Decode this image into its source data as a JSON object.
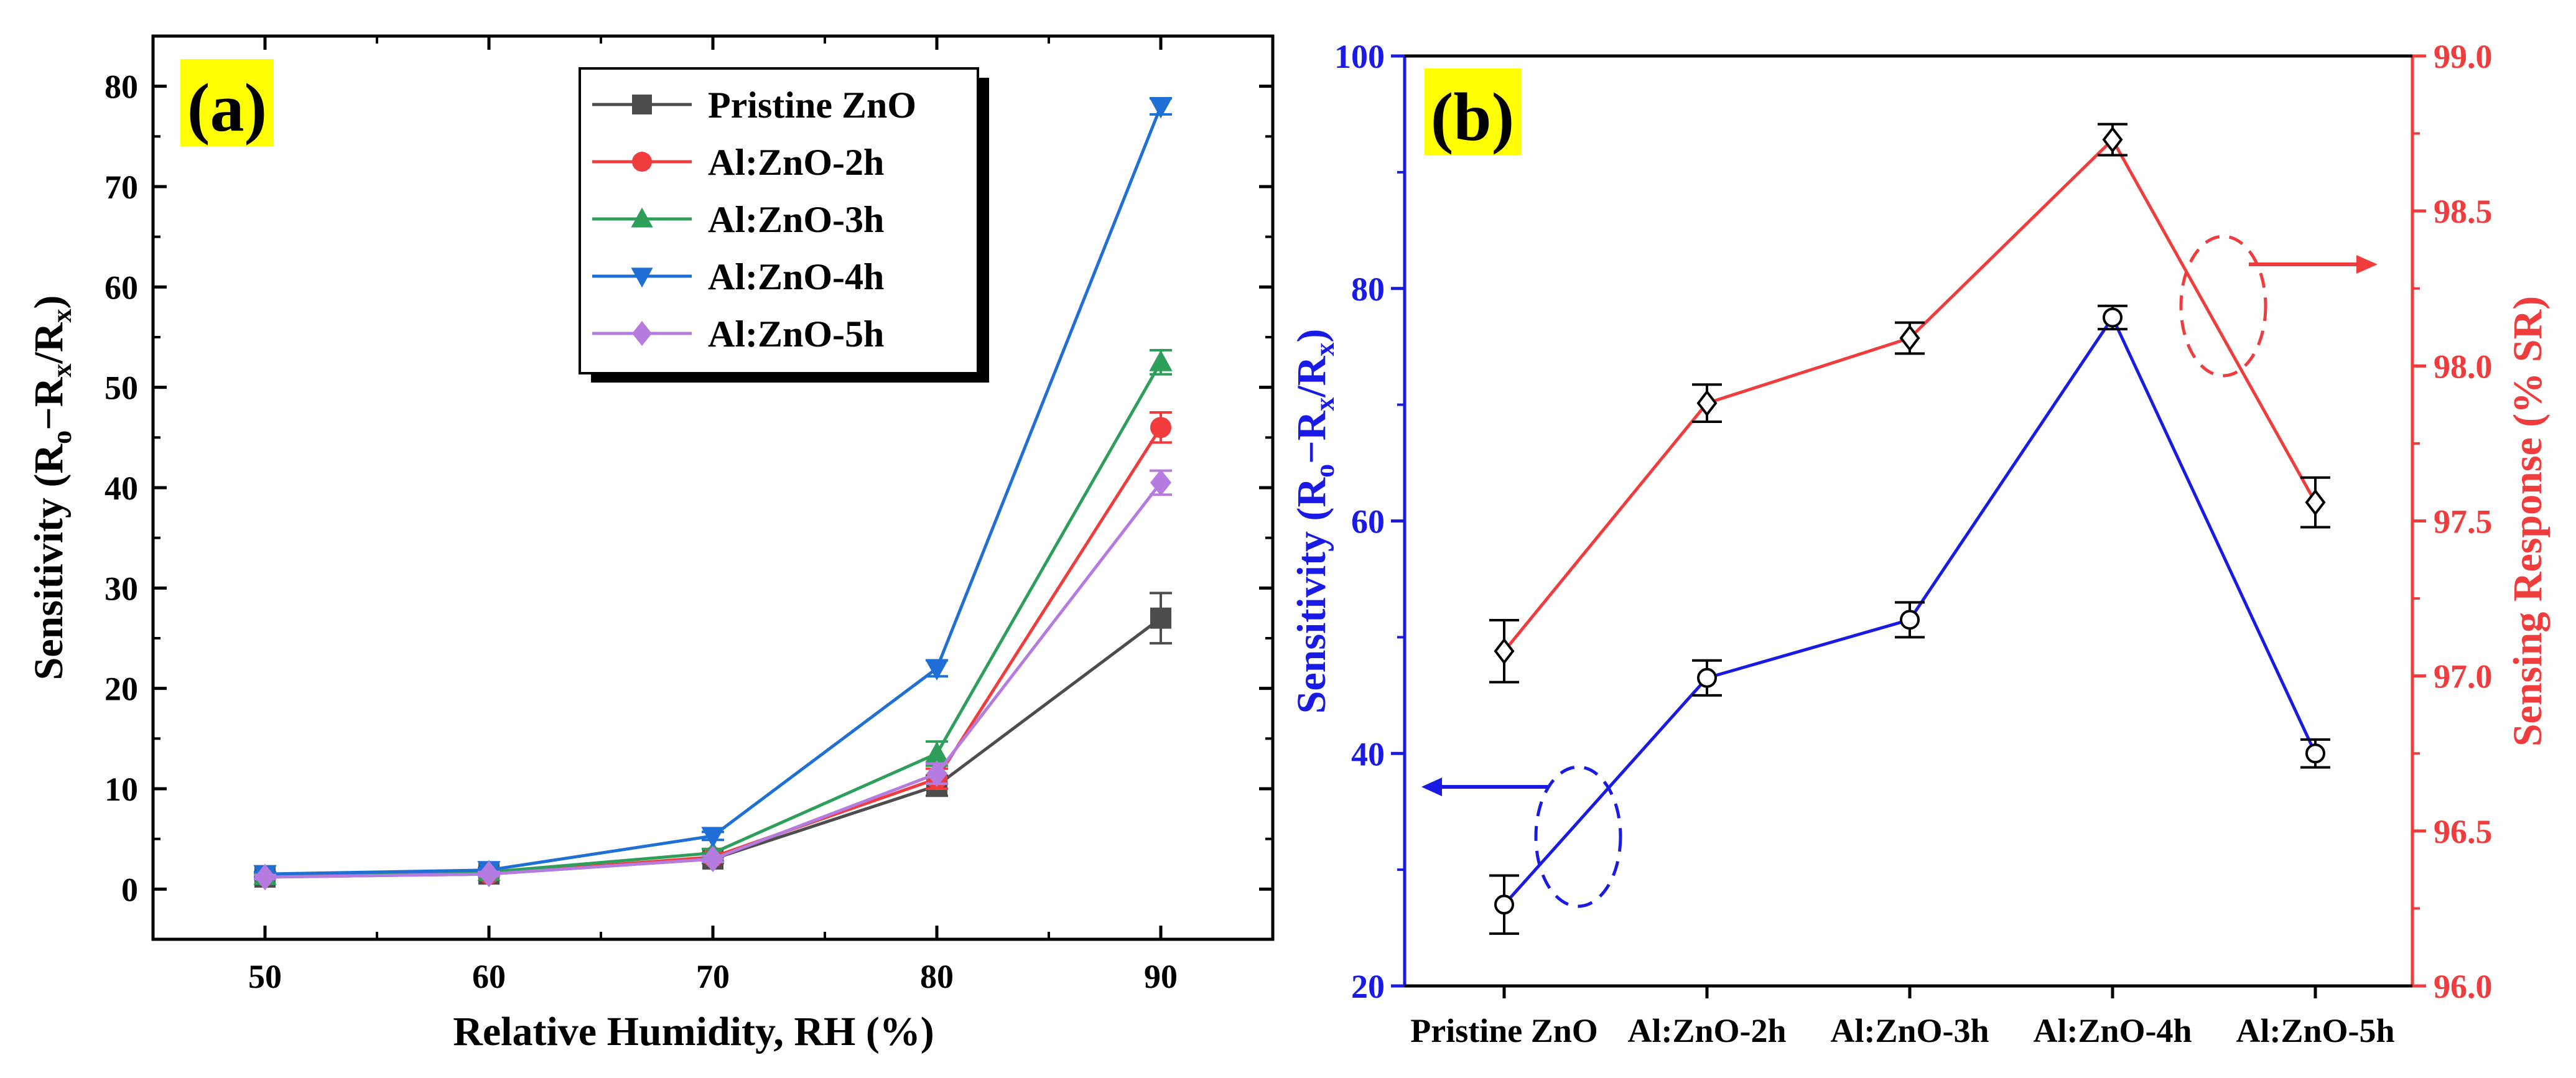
{
  "chart_data": [
    {
      "panel": "(a)",
      "type": "line",
      "xlabel": "Relative Humidity, RH (%)",
      "ylabel": "Sensitivity (Ro−Rx/Rx)",
      "ylabel_parts": {
        "pre": "Sensitivity (R",
        "sub1": "o",
        "mid": "−R",
        "sub2": "x",
        "mid2": "/R",
        "sub3": "x",
        "post": ")"
      },
      "x": [
        50,
        60,
        70,
        80,
        90
      ],
      "xlim": [
        45,
        95
      ],
      "ylim": [
        -5,
        85
      ],
      "xticks": [
        50,
        60,
        70,
        80,
        90
      ],
      "yticks": [
        0,
        10,
        20,
        30,
        40,
        50,
        60,
        70,
        80
      ],
      "grid": false,
      "legend_position": "top-center",
      "series": [
        {
          "name": "Pristine ZnO",
          "color": "#4d4d4d",
          "marker": "square",
          "values": [
            1.2,
            1.5,
            3.0,
            10.3,
            27.0
          ],
          "errors": [
            0.2,
            0.2,
            0.4,
            1.0,
            2.5
          ]
        },
        {
          "name": "Al:ZnO-2h",
          "color": "#f03c3c",
          "marker": "circle",
          "values": [
            1.3,
            1.5,
            3.2,
            11.0,
            46.0
          ],
          "errors": [
            0.2,
            0.2,
            0.4,
            1.0,
            1.5
          ]
        },
        {
          "name": "Al:ZnO-3h",
          "color": "#2e9e5b",
          "marker": "triangle-up",
          "values": [
            1.3,
            1.7,
            3.6,
            13.5,
            52.5
          ],
          "errors": [
            0.2,
            0.2,
            0.4,
            1.2,
            1.2
          ]
        },
        {
          "name": "Al:ZnO-4h",
          "color": "#1f6fd6",
          "marker": "triangle-down",
          "values": [
            1.5,
            1.9,
            5.3,
            22.0,
            78.0
          ],
          "errors": [
            0.2,
            0.2,
            0.4,
            0.8,
            0.8
          ]
        },
        {
          "name": "Al:ZnO-5h",
          "color": "#b57be0",
          "marker": "diamond",
          "values": [
            1.2,
            1.5,
            3.0,
            11.5,
            40.5
          ],
          "errors": [
            0.2,
            0.2,
            0.3,
            1.0,
            1.2
          ]
        }
      ]
    },
    {
      "panel": "(b)",
      "type": "line",
      "categories": [
        "Pristine ZnO",
        "Al:ZnO-2h",
        "Al:ZnO-3h",
        "Al:ZnO-4h",
        "Al:ZnO-5h"
      ],
      "ylabel_left": "Sensitivity (Ro−Rx/Rx)",
      "ylabel_left_parts": {
        "pre": "Sensitivity (R",
        "sub1": "o",
        "mid": "−R",
        "sub2": "x",
        "mid2": "/R",
        "sub3": "x",
        "post": ")"
      },
      "ylabel_right": "Sensing Response (% SR)",
      "ylim_left": [
        20,
        100
      ],
      "ylim_right": [
        96.0,
        99.0
      ],
      "yticks_left": [
        20,
        40,
        60,
        80,
        100
      ],
      "yticks_right": [
        "96.0",
        "96.5",
        "97.0",
        "97.5",
        "98.0",
        "98.5",
        "99.0"
      ],
      "left_axis_color": "#1a1ae6",
      "right_axis_color": "#f03c3c",
      "grid": false,
      "series": [
        {
          "name": "Sensitivity",
          "axis": "left",
          "color": "#1a1ae6",
          "marker": "open-circle",
          "values": [
            27.0,
            46.5,
            51.5,
            77.5,
            40.0
          ],
          "errors": [
            2.5,
            1.5,
            1.5,
            1.0,
            1.2
          ]
        },
        {
          "name": "Sensing Response",
          "axis": "right",
          "color": "#f03c3c",
          "marker": "open-diamond",
          "values": [
            97.08,
            97.88,
            98.09,
            98.73,
            97.56
          ],
          "errors": [
            0.1,
            0.06,
            0.05,
            0.05,
            0.08
          ]
        }
      ],
      "annotations": [
        "blue dashed ellipse with arrow pointing to left axis",
        "red dashed ellipse with arrow pointing to right axis"
      ]
    }
  ]
}
